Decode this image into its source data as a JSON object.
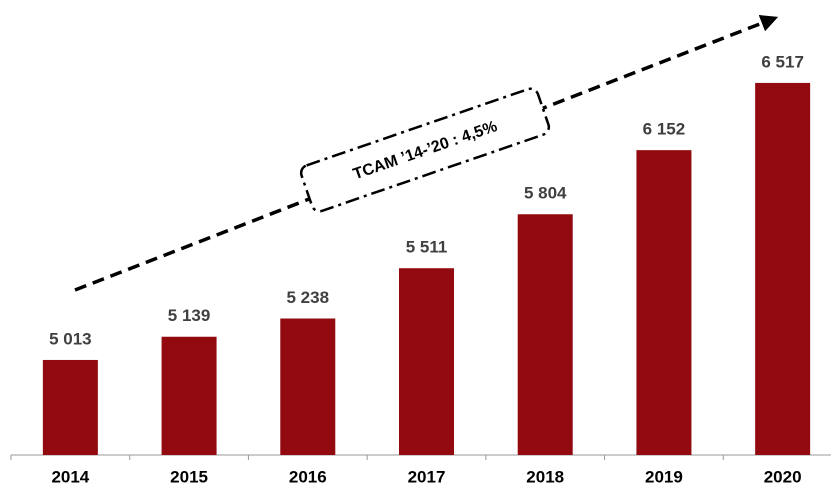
{
  "chart_data": {
    "type": "bar",
    "categories": [
      "2014",
      "2015",
      "2016",
      "2017",
      "2018",
      "2019",
      "2020"
    ],
    "values": [
      5013,
      5139,
      5238,
      5511,
      5804,
      6152,
      6517
    ],
    "value_labels": [
      "5 013",
      "5 139",
      "5 238",
      "5 511",
      "5 804",
      "6 152",
      "6 517"
    ],
    "color": "#920a10",
    "ylim": [
      4497,
      6750
    ],
    "annotation": "TCAM ’14-’20 : 4,5%"
  }
}
